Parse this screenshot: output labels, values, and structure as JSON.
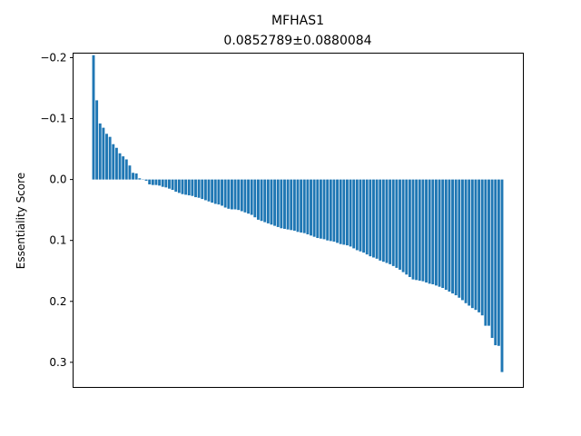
{
  "chart_data": {
    "type": "bar",
    "title": "MFHAS1",
    "subtitle": "0.0852789±0.0880084",
    "ylabel": "Essentiality Score",
    "xlabel": "",
    "y_inverted": true,
    "ylim": [
      -0.2074,
      0.3412
    ],
    "yticks": [
      {
        "value": -0.2,
        "label": "−0.2"
      },
      {
        "value": -0.1,
        "label": "−0.1"
      },
      {
        "value": 0.0,
        "label": "0.0"
      },
      {
        "value": 0.1,
        "label": "0.1"
      },
      {
        "value": 0.2,
        "label": "0.2"
      },
      {
        "value": 0.3,
        "label": "0.3"
      }
    ],
    "bar_color": "#1f77b4",
    "grid": false,
    "values": [
      -0.204,
      -0.13,
      -0.092,
      -0.085,
      -0.075,
      -0.07,
      -0.058,
      -0.052,
      -0.043,
      -0.038,
      -0.033,
      -0.023,
      -0.011,
      -0.01,
      -0.002,
      0.0,
      0.002,
      0.008,
      0.009,
      0.009,
      0.01,
      0.012,
      0.013,
      0.015,
      0.017,
      0.02,
      0.022,
      0.024,
      0.025,
      0.026,
      0.027,
      0.029,
      0.03,
      0.032,
      0.034,
      0.036,
      0.038,
      0.04,
      0.041,
      0.043,
      0.046,
      0.048,
      0.049,
      0.049,
      0.05,
      0.052,
      0.054,
      0.056,
      0.058,
      0.062,
      0.066,
      0.068,
      0.07,
      0.072,
      0.074,
      0.076,
      0.078,
      0.08,
      0.081,
      0.082,
      0.083,
      0.084,
      0.086,
      0.087,
      0.088,
      0.09,
      0.092,
      0.094,
      0.096,
      0.097,
      0.098,
      0.1,
      0.101,
      0.102,
      0.104,
      0.106,
      0.107,
      0.108,
      0.11,
      0.113,
      0.116,
      0.118,
      0.12,
      0.123,
      0.126,
      0.128,
      0.13,
      0.133,
      0.135,
      0.137,
      0.139,
      0.142,
      0.145,
      0.148,
      0.152,
      0.156,
      0.16,
      0.164,
      0.165,
      0.166,
      0.167,
      0.169,
      0.171,
      0.172,
      0.174,
      0.176,
      0.178,
      0.181,
      0.184,
      0.187,
      0.19,
      0.194,
      0.198,
      0.203,
      0.207,
      0.211,
      0.214,
      0.218,
      0.223,
      0.24,
      0.24,
      0.26,
      0.272,
      0.273,
      0.316
    ]
  }
}
